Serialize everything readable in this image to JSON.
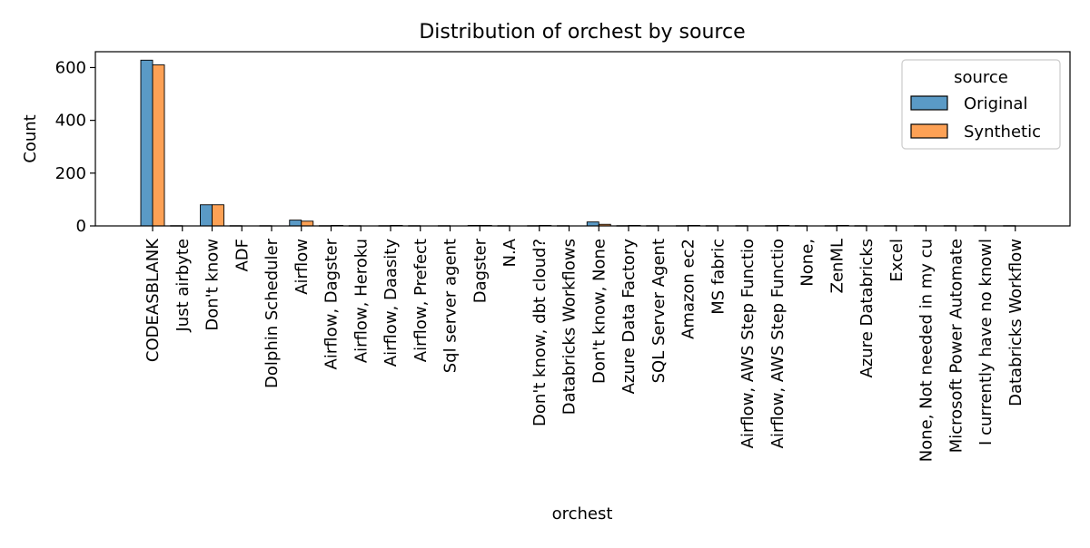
{
  "chart_data": {
    "type": "bar",
    "title": "Distribution of orchest by source",
    "xlabel": "orchest",
    "ylabel": "Count",
    "ylim": [
      0,
      660
    ],
    "yticks": [
      0,
      200,
      400,
      600
    ],
    "grid": false,
    "legend": {
      "title": "source",
      "placement": "top-right"
    },
    "categories": [
      "CODEASBLANK",
      "Just airbyte",
      "Don't know",
      "ADF",
      "Dolphin Scheduler",
      "Airflow",
      "Airflow, Dagster",
      "Airflow, Heroku",
      "Airflow, Daasity",
      "Airflow, Prefect",
      "Sql server agent",
      "Dagster",
      "N.A",
      "Don't know, dbt cloud?",
      "Databricks Workflows",
      "Don't know, None",
      "Azure Data Factory",
      "SQL Server Agent",
      "Amazon ec2",
      "MS fabric",
      "Airflow, AWS Step Functio",
      "Airflow, AWS Step Functio",
      "None,",
      "ZenML",
      "Azure Databricks",
      "Excel",
      "None, Not needed in my cu",
      "Microsoft Power Automate",
      "I currently have no knowl",
      "Databricks Workflow"
    ],
    "series": [
      {
        "name": "Original",
        "color": "#5a9ac6",
        "values": [
          628,
          1,
          80,
          1,
          1,
          22,
          1,
          1,
          1,
          1,
          1,
          2,
          1,
          1,
          1,
          15,
          1,
          1,
          1,
          1,
          1,
          1,
          1,
          1,
          1,
          1,
          1,
          1,
          1,
          1
        ]
      },
      {
        "name": "Synthetic",
        "color": "#fda155",
        "values": [
          610,
          0,
          80,
          0,
          0,
          18,
          2,
          0,
          2,
          0,
          0,
          2,
          0,
          2,
          0,
          6,
          2,
          0,
          2,
          0,
          0,
          2,
          0,
          2,
          0,
          0,
          0,
          0,
          0,
          0
        ]
      }
    ]
  }
}
